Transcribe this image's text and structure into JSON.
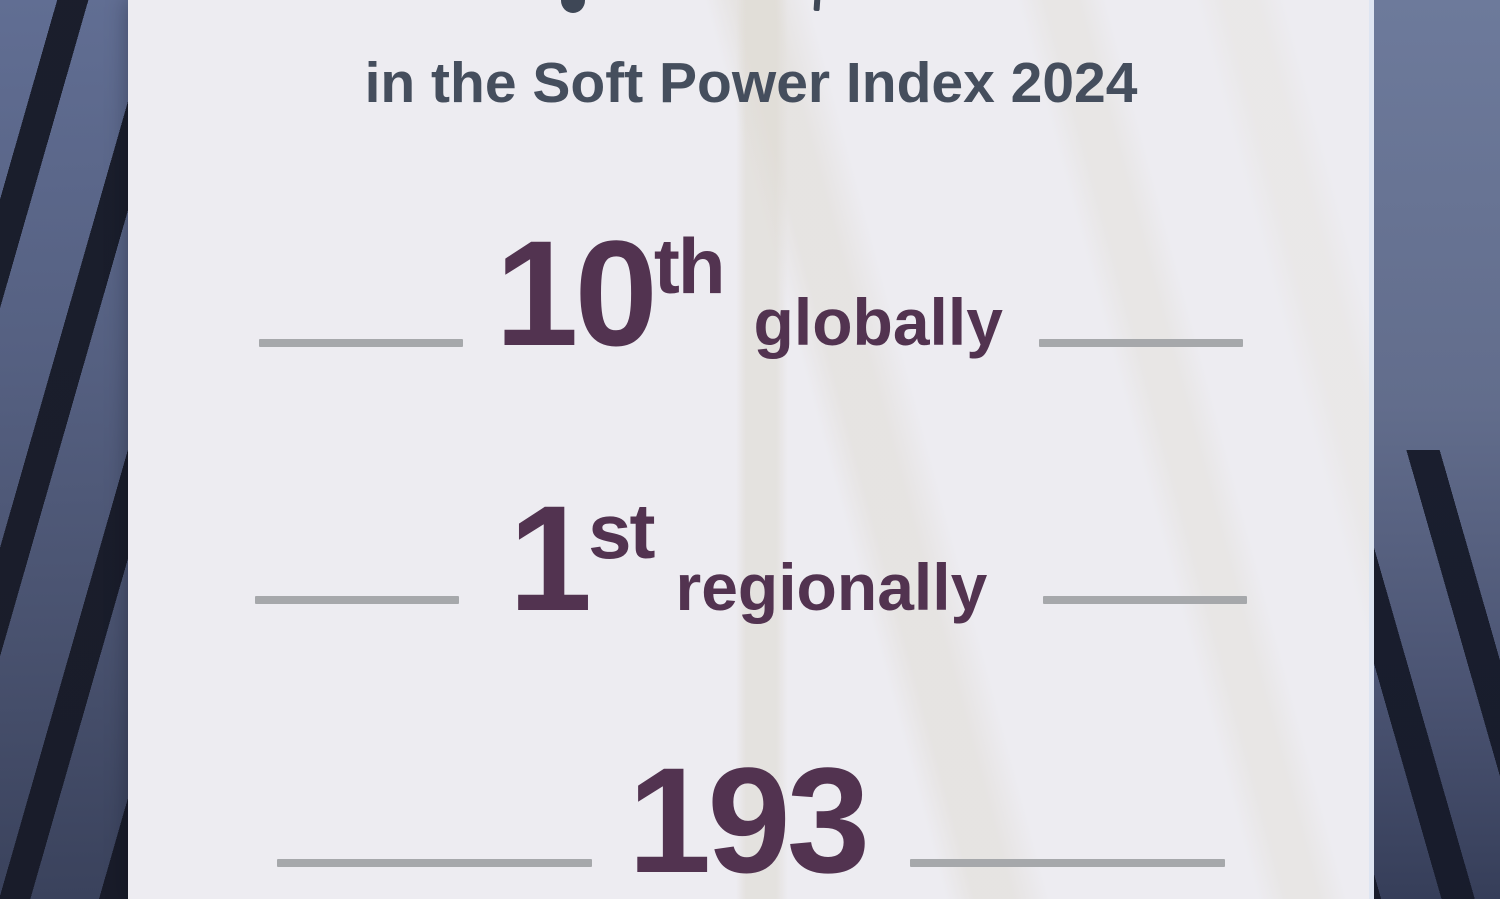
{
  "card": {
    "title": "in the Soft Power Index 2024",
    "stats": [
      {
        "value": "10",
        "suffix": "th",
        "label": "globally"
      },
      {
        "value": "1",
        "suffix": "st",
        "label": "regionally"
      },
      {
        "value": "193",
        "suffix": "",
        "label": ""
      }
    ]
  },
  "colors": {
    "stat_accent": "#523350",
    "title_text": "#454e5d",
    "divider_gray": "#a6a8ab",
    "card_background": "#edecf1",
    "sky_blue": "#5e6b90",
    "cable_dark": "#171a27"
  }
}
